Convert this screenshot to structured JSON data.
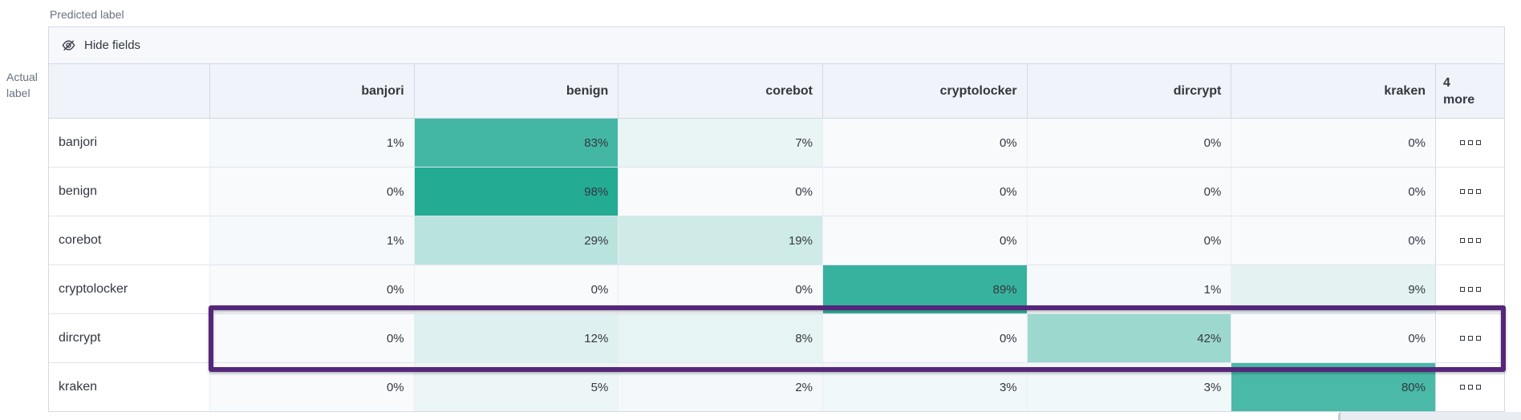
{
  "labels": {
    "predicted": "Predicted label",
    "actual_line1": "Actual",
    "actual_line2": "label"
  },
  "toolbar": {
    "hide_fields": "Hide fields",
    "hide_fields_icon": "eye-closed-icon"
  },
  "grid": {
    "more_header_line1": "4",
    "more_header_line2": "more",
    "row_actions_icon": "boxes-horizontal-icon"
  },
  "chart_data": {
    "type": "heatmap",
    "columns": [
      "banjori",
      "benign",
      "corebot",
      "cryptolocker",
      "dircrypt",
      "kraken"
    ],
    "rows": [
      "banjori",
      "benign",
      "corebot",
      "cryptolocker",
      "dircrypt",
      "kraken"
    ],
    "values_percent": [
      [
        1,
        83,
        7,
        0,
        0,
        0
      ],
      [
        0,
        98,
        0,
        0,
        0,
        0
      ],
      [
        1,
        29,
        19,
        0,
        0,
        0
      ],
      [
        0,
        0,
        0,
        89,
        1,
        9
      ],
      [
        0,
        12,
        8,
        0,
        42,
        0
      ],
      [
        0,
        5,
        2,
        3,
        3,
        80
      ]
    ],
    "cell_value_suffix": "%",
    "highlighted_row": "dircrypt",
    "legend_position": "none",
    "grid_lines": true
  },
  "colors": {
    "heat_base": "#1fa992",
    "cell_zero_bg": "#f8fafc",
    "highlight_border": "#55277b",
    "header_bg": "#f0f3f9",
    "toolbar_bg": "#f6f8fc",
    "panel_border": "#d3dae6",
    "text": "#343741",
    "axis_text": "#69707d"
  }
}
